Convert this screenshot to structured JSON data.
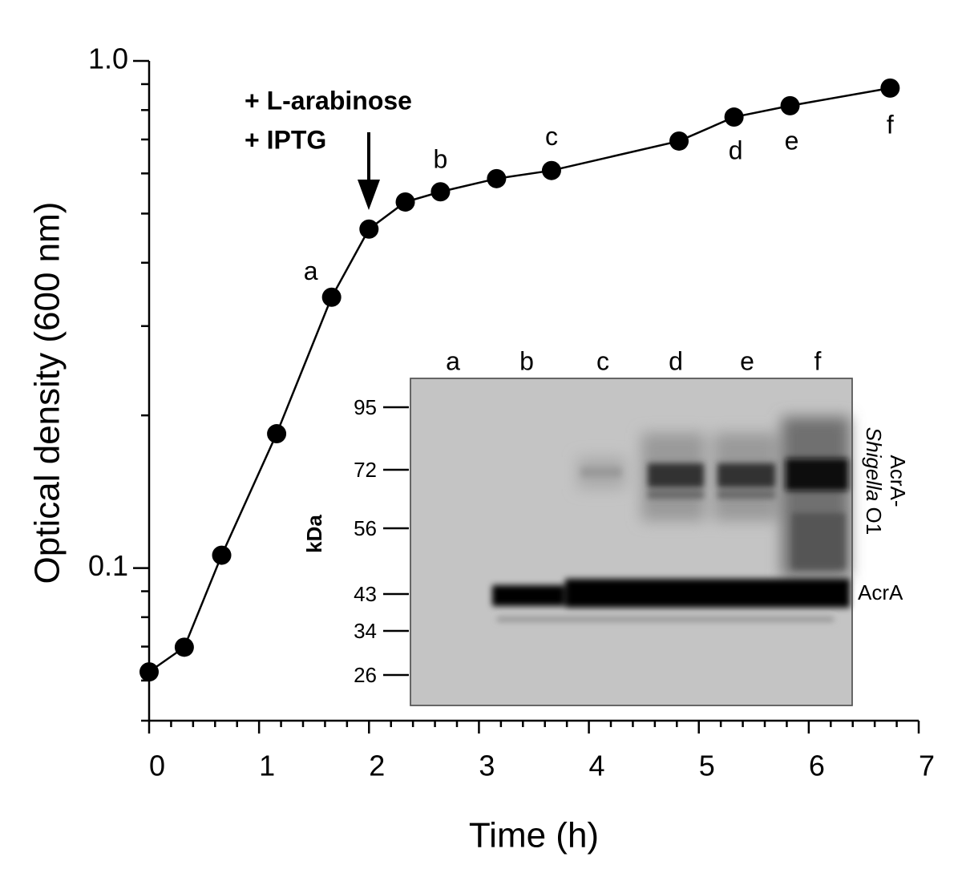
{
  "chart_data": {
    "type": "line",
    "x_label": "Time (h)",
    "y_label": "Optical density (600 nm)",
    "x": [
      0,
      0.32,
      0.66,
      1.16,
      1.66,
      2.0,
      2.33,
      2.65,
      3.16,
      3.66,
      4.82,
      5.32,
      5.83,
      6.74
    ],
    "values": [
      0.0624,
      0.0698,
      0.106,
      0.184,
      0.342,
      0.466,
      0.527,
      0.552,
      0.586,
      0.608,
      0.695,
      0.775,
      0.816,
      0.884
    ],
    "point_labels": [
      null,
      null,
      null,
      null,
      "a",
      null,
      null,
      "b",
      null,
      "c",
      null,
      "d",
      "e",
      "f"
    ],
    "color": "#000000",
    "xlim": [
      0,
      7
    ],
    "xticks": [
      0,
      1,
      2,
      3,
      4,
      5,
      6,
      7
    ],
    "xminorticks": [
      0.2,
      0.4,
      0.6,
      0.8,
      1.2,
      1.4,
      1.6,
      1.8,
      2.2,
      2.4,
      2.6,
      2.8,
      3.2,
      3.4,
      3.6,
      3.8,
      4.2,
      4.4,
      4.6,
      4.8,
      5.2,
      5.4,
      5.6,
      5.8,
      6.2,
      6.4,
      6.6,
      6.8
    ],
    "ylim": [
      0.05,
      1
    ],
    "ylog": true,
    "yticks": [
      0.1,
      {
        "value": 1,
        "label": "1.0"
      }
    ],
    "yminorticks": [
      0.05,
      0.06,
      0.07,
      0.08,
      0.09,
      0.2,
      0.3,
      0.4,
      0.5,
      0.6,
      0.7,
      0.8,
      0.9
    ],
    "annotations": [
      "+ L-arabinose",
      "+ IPTG"
    ]
  },
  "blot": {
    "lanes": [
      "a",
      "b",
      "c",
      "d",
      "e",
      "f"
    ],
    "unit": "kDa",
    "markers": [
      "95",
      "72",
      "56",
      "43",
      "34",
      "26"
    ],
    "band_label": "AcrA",
    "upper_label_line1": "AcrA-",
    "upper_label_italic": "Shigella",
    "upper_label_rest": "O1"
  }
}
